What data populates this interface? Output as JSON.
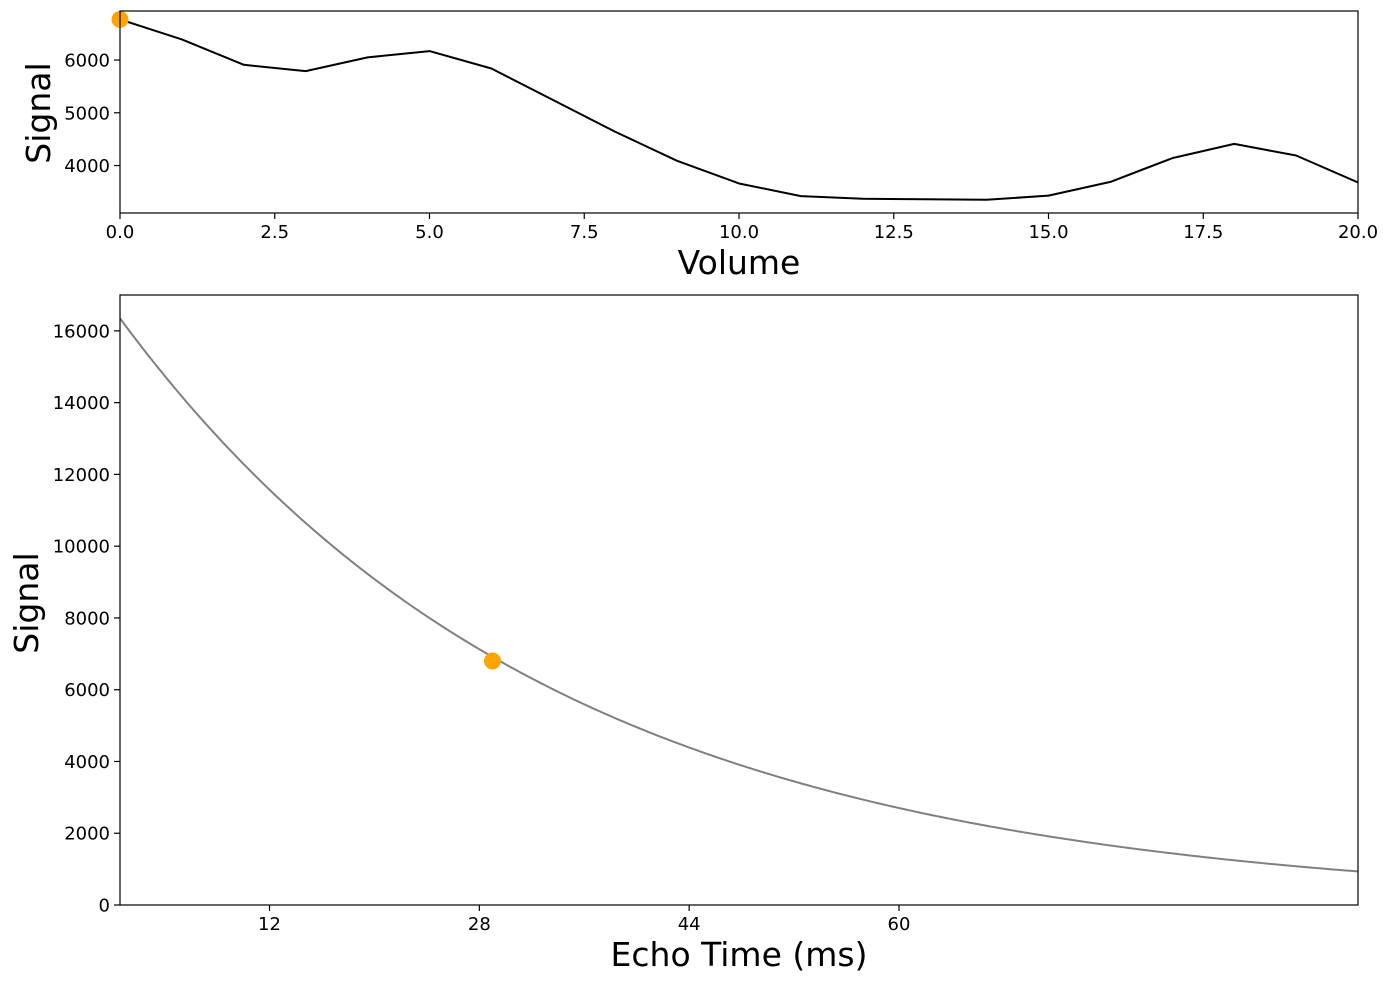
{
  "chart_data": [
    {
      "type": "line",
      "title": "",
      "xlabel": "Volume",
      "ylabel": "Signal",
      "xlim": [
        0,
        20
      ],
      "ylim": [
        3100,
        6930
      ],
      "xticks": [
        0,
        2.5,
        5,
        7.5,
        10,
        12.5,
        15,
        17.5,
        20
      ],
      "xtick_labels": [
        "0.0",
        "2.5",
        "5.0",
        "7.5",
        "10.0",
        "12.5",
        "15.0",
        "17.5",
        "20.0"
      ],
      "yticks": [
        4000,
        5000,
        6000
      ],
      "ytick_labels": [
        "4000",
        "5000",
        "6000"
      ],
      "grid": false,
      "series": [
        {
          "color": "#000000",
          "x": [
            0,
            1,
            2,
            3,
            4,
            5,
            6,
            7,
            8,
            9,
            10,
            11,
            12,
            13,
            14,
            15,
            16,
            17,
            18,
            19,
            20
          ],
          "y": [
            6770,
            6390,
            5910,
            5790,
            6050,
            6170,
            5840,
            5240,
            4640,
            4090,
            3660,
            3420,
            3370,
            3360,
            3350,
            3430,
            3690,
            4140,
            4410,
            4190,
            3680
          ]
        }
      ],
      "highlight_point": {
        "x": 0,
        "y": 6770,
        "color": "#FFA500"
      }
    },
    {
      "type": "line",
      "title": "",
      "xlabel": "Echo Time (ms)",
      "ylabel": "Signal",
      "xlim": [
        0.6,
        95
      ],
      "ylim": [
        0,
        17000
      ],
      "xticks": [
        12,
        28,
        44,
        60
      ],
      "xtick_labels": [
        "12",
        "28",
        "44",
        "60"
      ],
      "yticks": [
        0,
        2000,
        4000,
        6000,
        8000,
        10000,
        12000,
        14000,
        16000
      ],
      "ytick_labels": [
        "0",
        "2000",
        "4000",
        "6000",
        "8000",
        "10000",
        "12000",
        "14000",
        "16000"
      ],
      "grid": false,
      "series": [
        {
          "color": "#808080",
          "model": "mono-exponential decay",
          "S0": 16650,
          "T2": 33
        }
      ],
      "highlight_point": {
        "x": 29,
        "y": 6800,
        "color": "#FFA500"
      }
    }
  ]
}
